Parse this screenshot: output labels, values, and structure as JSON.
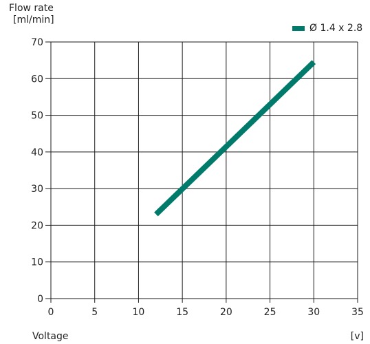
{
  "chart_data": {
    "type": "line",
    "title": "",
    "ylabel": [
      "Flow rate",
      "[ml/min]"
    ],
    "xlabel": "Voltage",
    "xunit": "[v]",
    "xlim": [
      0,
      35
    ],
    "ylim": [
      0,
      70
    ],
    "xticks": [
      0,
      5,
      10,
      15,
      20,
      25,
      30,
      35
    ],
    "yticks": [
      0,
      10,
      20,
      30,
      40,
      50,
      60,
      70
    ],
    "grid": true,
    "legend_position": "top-right",
    "series": [
      {
        "name": "Ø 1.4 x 2.8",
        "color": "#007a6a",
        "x": [
          12,
          30
        ],
        "y": [
          23,
          64.5
        ]
      }
    ]
  }
}
